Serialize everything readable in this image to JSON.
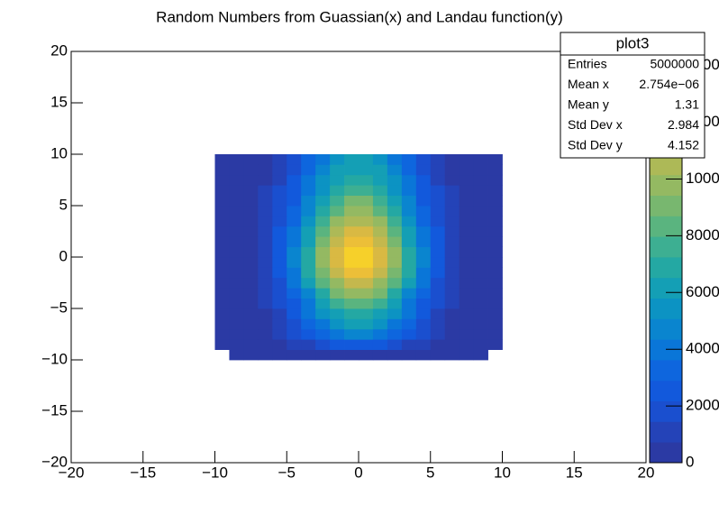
{
  "chart_data": {
    "type": "heatmap",
    "title": "Random Numbers from Guassian(x) and Landau function(y)",
    "xlim": [
      -20,
      20
    ],
    "ylim": [
      -20,
      20
    ],
    "zlim": [
      0,
      14500
    ],
    "xticks": [
      {
        "value": -20,
        "label": "−20"
      },
      {
        "value": -15,
        "label": "−15"
      },
      {
        "value": -10,
        "label": "−10"
      },
      {
        "value": -5,
        "label": "−5"
      },
      0,
      5,
      10,
      15,
      20
    ],
    "yticks": [
      {
        "value": -20,
        "label": "−20"
      },
      {
        "value": -15,
        "label": "−15"
      },
      {
        "value": -10,
        "label": "−10"
      },
      {
        "value": -5,
        "label": "−5"
      },
      0,
      5,
      10,
      15,
      20
    ],
    "zticks": [
      0,
      2000,
      4000,
      6000,
      8000,
      10000,
      12000,
      14000
    ],
    "xbins": [
      -10,
      -9,
      -8,
      -7,
      -6,
      -5,
      -4,
      -3,
      -2,
      -1,
      0,
      1,
      2,
      3,
      4,
      5,
      6,
      7,
      8,
      9,
      10
    ],
    "ybins": [
      -10,
      -9,
      -8,
      -7,
      -6,
      -5,
      -4,
      -3,
      -2,
      -1,
      0,
      1,
      2,
      3,
      4,
      5,
      6,
      7,
      8,
      9,
      10
    ],
    "palette": [
      "#2b3aa4",
      "#2443b8",
      "#1a4fcf",
      "#1259dc",
      "#0e66de",
      "#0a76d8",
      "#0a85cf",
      "#0c93c3",
      "#149fb5",
      "#24a8a3",
      "#3daf92",
      "#5ab47f",
      "#78b76f",
      "#94b962",
      "#adb957",
      "#c4b84d",
      "#d9b943",
      "#ecbf38",
      "#f6d02a",
      "#f9e31e"
    ],
    "z": [
      [
        0,
        10,
        10,
        30,
        60,
        100,
        150,
        210,
        260,
        300,
        300,
        260,
        210,
        150,
        100,
        60,
        30,
        10,
        10,
        0
      ],
      [
        20,
        50,
        110,
        240,
        470,
        810,
        1270,
        1770,
        2210,
        2470,
        2470,
        2210,
        1770,
        1270,
        810,
        470,
        240,
        110,
        50,
        20
      ],
      [
        30,
        80,
        200,
        430,
        840,
        1460,
        2280,
        3180,
        3970,
        4440,
        4440,
        3970,
        3180,
        2280,
        1460,
        840,
        430,
        200,
        80,
        30
      ],
      [
        40,
        110,
        260,
        580,
        1120,
        1950,
        3040,
        4240,
        5290,
        5920,
        5920,
        5290,
        4240,
        3040,
        1950,
        1120,
        580,
        260,
        110,
        40
      ],
      [
        50,
        130,
        320,
        690,
        1340,
        2340,
        3640,
        5090,
        6350,
        7100,
        7100,
        6350,
        5090,
        3640,
        2340,
        1340,
        690,
        320,
        130,
        50
      ],
      [
        60,
        150,
        370,
        820,
        1580,
        2760,
        4300,
        6010,
        7500,
        8380,
        8380,
        7500,
        6010,
        4300,
        2760,
        1580,
        820,
        370,
        150,
        60
      ],
      [
        70,
        180,
        440,
        960,
        1860,
        3250,
        5060,
        7070,
        8820,
        9860,
        9860,
        8820,
        7070,
        5060,
        3250,
        1860,
        960,
        440,
        180,
        70
      ],
      [
        80,
        210,
        510,
        1100,
        2140,
        3740,
        5820,
        8130,
        10140,
        11340,
        11340,
        10140,
        8130,
        5820,
        3740,
        2140,
        1100,
        510,
        210,
        80
      ],
      [
        90,
        230,
        570,
        1250,
        2420,
        4230,
        6580,
        9190,
        11470,
        12820,
        12820,
        11470,
        9190,
        6580,
        4230,
        2420,
        1250,
        570,
        230,
        90
      ],
      [
        90,
        250,
        610,
        1320,
        2570,
        4490,
        6980,
        9760,
        12170,
        13610,
        13610,
        12170,
        9760,
        6980,
        4490,
        2570,
        1320,
        610,
        250,
        90
      ],
      [
        90,
        240,
        590,
        1300,
        2510,
        4390,
        6830,
        9540,
        11910,
        13310,
        13310,
        11910,
        9540,
        6830,
        4390,
        2510,
        1300,
        590,
        240,
        90
      ],
      [
        80,
        230,
        560,
        1230,
        2380,
        4160,
        6480,
        9050,
        11290,
        12620,
        12620,
        11290,
        9050,
        6480,
        4160,
        2380,
        1230,
        560,
        230,
        80
      ],
      [
        80,
        210,
        520,
        1130,
        2190,
        3840,
        5970,
        8340,
        10410,
        11630,
        11630,
        10410,
        8340,
        5970,
        3840,
        2190,
        1130,
        520,
        210,
        80
      ],
      [
        70,
        190,
        480,
        1040,
        2010,
        3510,
        5460,
        7640,
        9530,
        10650,
        10650,
        9530,
        7640,
        5460,
        3510,
        2010,
        1040,
        480,
        190,
        70
      ],
      [
        60,
        180,
        430,
        940,
        1820,
        3180,
        4960,
        6930,
        8640,
        9660,
        9660,
        8640,
        6930,
        4960,
        3180,
        1820,
        940,
        430,
        180,
        60
      ],
      [
        60,
        160,
        390,
        850,
        1660,
        2890,
        4500,
        6290,
        7850,
        8780,
        8780,
        7850,
        6290,
        4500,
        2890,
        1660,
        850,
        390,
        160,
        60
      ],
      [
        50,
        140,
        350,
        770,
        1490,
        2600,
        4050,
        5660,
        7060,
        7890,
        7890,
        7060,
        5660,
        4050,
        2600,
        1490,
        770,
        350,
        140,
        50
      ],
      [
        50,
        130,
        320,
        700,
        1360,
        2370,
        3690,
        5160,
        6440,
        7200,
        7200,
        6440,
        5160,
        3690,
        2370,
        1360,
        700,
        320,
        130,
        50
      ],
      [
        40,
        120,
        290,
        630,
        1230,
        2140,
        3340,
        4670,
        5820,
        6510,
        6510,
        5820,
        4670,
        3340,
        2140,
        1230,
        630,
        290,
        120,
        40
      ],
      [
        40,
        110,
        260,
        580,
        1120,
        1950,
        3040,
        4240,
        5290,
        5920,
        5920,
        5290,
        4240,
        3040,
        1950,
        1120,
        580,
        260,
        110,
        40
      ]
    ],
    "stats": {
      "title": "plot3",
      "rows": [
        [
          "Entries",
          "5000000"
        ],
        [
          "Mean x",
          "2.754e−06"
        ],
        [
          "Mean y",
          "1.31"
        ],
        [
          "Std Dev x",
          "2.984"
        ],
        [
          "Std Dev y",
          "4.152"
        ]
      ]
    }
  }
}
